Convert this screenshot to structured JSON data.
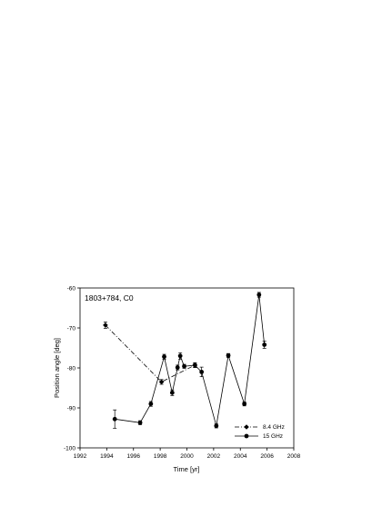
{
  "chart_data": {
    "type": "scatter",
    "title": "1803+784, C0",
    "xlabel": "Time [yr]",
    "ylabel": "Position angle [deg]",
    "xlim": [
      1992,
      2008
    ],
    "ylim": [
      -100,
      -60
    ],
    "xticks": [
      1992,
      1994,
      1996,
      1998,
      2000,
      2002,
      2004,
      2006,
      2008
    ],
    "yticks": [
      -100,
      -90,
      -80,
      -70,
      -60
    ],
    "legend_position": "bottom-right",
    "grid": false,
    "series": [
      {
        "name": "8.4 GHz",
        "line_style": "dash-dot",
        "marker": "diamond",
        "color": "#000000",
        "points": [
          {
            "x": 1993.9,
            "y": -69.3,
            "err": 0.8
          },
          {
            "x": 1998.1,
            "y": -83.5,
            "err": 0.6
          },
          {
            "x": 2000.6,
            "y": -79.3,
            "err": 0.6
          }
        ]
      },
      {
        "name": "15 GHz",
        "line_style": "solid",
        "marker": "circle",
        "color": "#000000",
        "points": [
          {
            "x": 1994.6,
            "y": -92.8,
            "err": 2.3
          },
          {
            "x": 1996.5,
            "y": -93.7,
            "err": 0.5
          },
          {
            "x": 1997.3,
            "y": -89.0,
            "err": 0.6
          },
          {
            "x": 1998.3,
            "y": -77.2,
            "err": 0.6
          },
          {
            "x": 1998.9,
            "y": -86.2,
            "err": 0.7
          },
          {
            "x": 1999.3,
            "y": -79.9,
            "err": 0.6
          },
          {
            "x": 1999.5,
            "y": -77.0,
            "err": 0.8
          },
          {
            "x": 1999.8,
            "y": -79.6,
            "err": 0.5
          },
          {
            "x": 2000.6,
            "y": -79.3,
            "err": 0.6
          },
          {
            "x": 2001.1,
            "y": -81.0,
            "err": 1.2
          },
          {
            "x": 2002.2,
            "y": -94.5,
            "err": 0.5
          },
          {
            "x": 2003.1,
            "y": -76.9,
            "err": 0.5
          },
          {
            "x": 2004.3,
            "y": -89.0,
            "err": 0.5
          },
          {
            "x": 2005.4,
            "y": -61.7,
            "err": 0.6
          },
          {
            "x": 2005.8,
            "y": -74.2,
            "err": 0.9
          }
        ]
      }
    ]
  }
}
